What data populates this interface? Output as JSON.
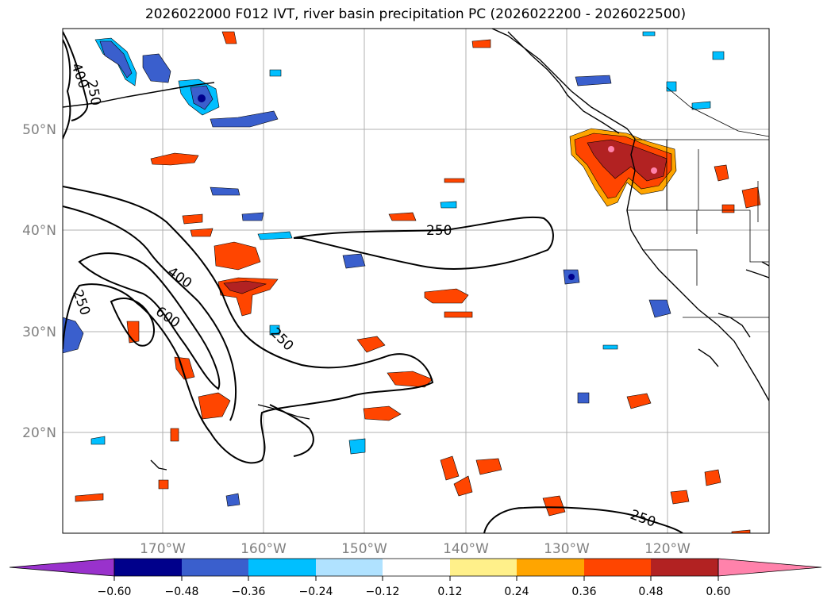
{
  "title": "2026022000 F012 IVT, river basin precipitation PC (2026022200 - 2026022500)",
  "map": {
    "latitudes": [
      {
        "label": "50°N"
      },
      {
        "label": "40°N"
      },
      {
        "label": "30°N"
      },
      {
        "label": "20°N"
      }
    ],
    "longitudes": [
      {
        "label": "170°W"
      },
      {
        "label": "160°W"
      },
      {
        "label": "150°W"
      },
      {
        "label": "140°W"
      },
      {
        "label": "130°W"
      },
      {
        "label": "120°W"
      }
    ],
    "ivt_contour_labels": [
      "400",
      "250",
      "250",
      "400",
      "600",
      "250",
      "250",
      "250"
    ]
  },
  "colorbar": {
    "ticks": [
      "−0.60",
      "−0.48",
      "−0.36",
      "−0.24",
      "−0.12",
      "0.12",
      "0.24",
      "0.36",
      "0.48",
      "0.60"
    ],
    "colors": [
      "#9932cc",
      "#00008b",
      "#3a5fcd",
      "#00bfff",
      "#b0e2ff",
      "#ffffff",
      "#fff08a",
      "#ffa500",
      "#ff4500",
      "#b22222",
      "#ff82ab"
    ]
  }
}
